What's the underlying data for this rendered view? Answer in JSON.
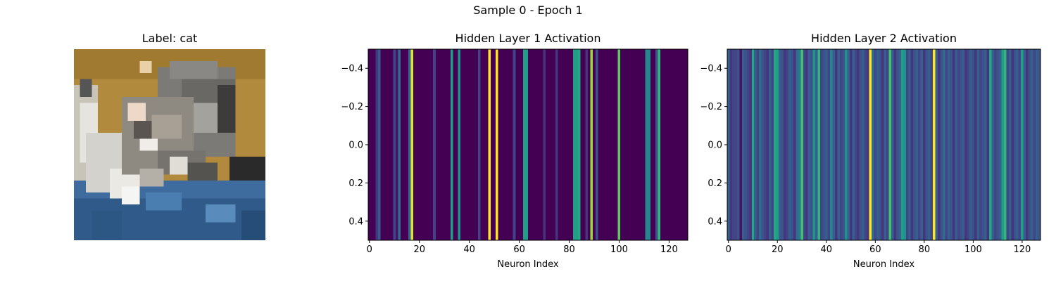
{
  "figure": {
    "suptitle": "Sample 0 - Epoch 1"
  },
  "image_panel": {
    "title": "Label: cat"
  },
  "chart_data": [
    {
      "type": "heatmap",
      "title": "Hidden Layer 1 Activation",
      "xlabel": "Neuron Index",
      "ylabel": "",
      "colormap": "viridis",
      "xlim": [
        -0.5,
        127.5
      ],
      "ylim": [
        0.5,
        -0.5
      ],
      "xticks": [
        "0",
        "20",
        "40",
        "60",
        "80",
        "100",
        "120"
      ],
      "yticks": [
        "−0.4",
        "−0.2",
        "0.0",
        "0.2",
        "0.4"
      ],
      "values": [
        0,
        0,
        0,
        0.15,
        0.28,
        0,
        0,
        0,
        0,
        0,
        0.2,
        0.05,
        0.35,
        0,
        0,
        0,
        0.32,
        0.95,
        0,
        0,
        0,
        0,
        0,
        0,
        0,
        0,
        0.2,
        0,
        0,
        0,
        0,
        0,
        0,
        0.55,
        0,
        0,
        0.5,
        0,
        0,
        0,
        0,
        0,
        0,
        0,
        0.2,
        0,
        0,
        0,
        1,
        0,
        0,
        1,
        0,
        0,
        0,
        0,
        0,
        0,
        0.2,
        0,
        0,
        0,
        0.55,
        0.55,
        0,
        0,
        0,
        0,
        0,
        0,
        0.15,
        0,
        0,
        0,
        0,
        0.15,
        0,
        0,
        0,
        0,
        0,
        0,
        0.55,
        0.55,
        0.6,
        0,
        0,
        0.15,
        0,
        0.85,
        0,
        0.25,
        0,
        0,
        0,
        0,
        0,
        0,
        0,
        0,
        0.75,
        0,
        0,
        0,
        0,
        0,
        0,
        0,
        0,
        0,
        0,
        0.45,
        0.45,
        0,
        0,
        0.25,
        0.65,
        0,
        0,
        0,
        0,
        0,
        0,
        0,
        0,
        0,
        0,
        0
      ]
    },
    {
      "type": "heatmap",
      "title": "Hidden Layer 2 Activation",
      "xlabel": "Neuron Index",
      "ylabel": "",
      "colormap": "viridis",
      "xlim": [
        -0.5,
        127.5
      ],
      "ylim": [
        0.5,
        -0.5
      ],
      "xticks": [
        "0",
        "20",
        "40",
        "60",
        "80",
        "100",
        "120"
      ],
      "yticks": [
        "−0.4",
        "−0.2",
        "0.0",
        "0.2",
        "0.4"
      ],
      "values": [
        0.3,
        0.15,
        0.2,
        0.2,
        0.25,
        0.05,
        0.3,
        0.25,
        0.2,
        0.15,
        0.6,
        0.3,
        0.2,
        0.35,
        0.25,
        0.2,
        0.15,
        0.3,
        0.2,
        0.6,
        0.55,
        0.3,
        0.25,
        0.15,
        0.2,
        0.3,
        0.25,
        0.15,
        0.35,
        0.4,
        0.7,
        0.2,
        0.15,
        0.3,
        0.25,
        0.5,
        0.3,
        0.65,
        0.2,
        0.25,
        0.3,
        0.2,
        0.45,
        0.3,
        0.15,
        0.3,
        0.2,
        0.25,
        0.5,
        0.3,
        0.15,
        0.3,
        0.2,
        0.15,
        0.25,
        0.3,
        0.2,
        0.15,
        1,
        0.35,
        0.2,
        0.3,
        0.25,
        0.15,
        0.3,
        0.2,
        0.7,
        0.3,
        0.15,
        0.25,
        0.3,
        0.55,
        0.5,
        0.2,
        0.3,
        0.15,
        0.25,
        0.3,
        0.2,
        0.3,
        0.15,
        0.25,
        0.3,
        0.2,
        1,
        0.3,
        0.15,
        0.25,
        0.35,
        0.2,
        0.3,
        0.25,
        0.15,
        0.3,
        0.2,
        0.25,
        0.3,
        0.15,
        0.2,
        0.3,
        0.25,
        0.15,
        0.3,
        0.2,
        0.25,
        0.3,
        0.15,
        0.6,
        0.3,
        0.2,
        0.25,
        0.3,
        0.55,
        0.65,
        0.2,
        0.3,
        0.15,
        0.25,
        0.3,
        0.2,
        0.55,
        0.3,
        0.15,
        0.25,
        0.3,
        0.2,
        0.3,
        0.25
      ]
    }
  ]
}
